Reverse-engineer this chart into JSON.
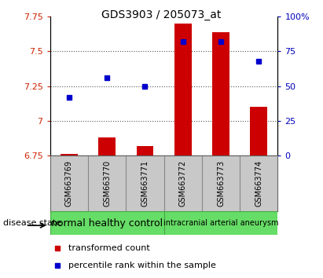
{
  "title": "GDS3903 / 205073_at",
  "samples": [
    "GSM663769",
    "GSM663770",
    "GSM663771",
    "GSM663772",
    "GSM663773",
    "GSM663774"
  ],
  "transformed_count": [
    6.762,
    6.882,
    6.818,
    7.7,
    7.64,
    7.1
  ],
  "percentile_rank": [
    42,
    56,
    50,
    82,
    82,
    68
  ],
  "ylim_left": [
    6.75,
    7.75
  ],
  "ylim_right": [
    0,
    100
  ],
  "yticks_left": [
    6.75,
    7.0,
    7.25,
    7.5,
    7.75
  ],
  "ytick_labels_left": [
    "6.75",
    "7",
    "7.25",
    "7.5",
    "7.75"
  ],
  "yticks_right": [
    0,
    25,
    50,
    75,
    100
  ],
  "ytick_labels_right": [
    "0",
    "25",
    "50",
    "75",
    "100%"
  ],
  "bar_color": "#cc0000",
  "dot_color": "#0000cc",
  "bar_bottom": 6.75,
  "grid_yticks": [
    7.0,
    7.25,
    7.5
  ],
  "grid_color": "#555555",
  "label_tc": "transformed count",
  "label_pr": "percentile rank within the sample",
  "disease_label": "disease state",
  "group1_label": "normal healthy control",
  "group2_label": "intracranial arterial aneurysm",
  "group1_fontsize": 9,
  "group2_fontsize": 7,
  "tick_color_left": "#cc2200",
  "tick_color_right": "#0000bb",
  "sample_area_bg": "#c8c8c8",
  "group_box_color": "#66dd66",
  "group_box_edge": "#44aa44",
  "title_fontsize": 10,
  "legend_fontsize": 8
}
